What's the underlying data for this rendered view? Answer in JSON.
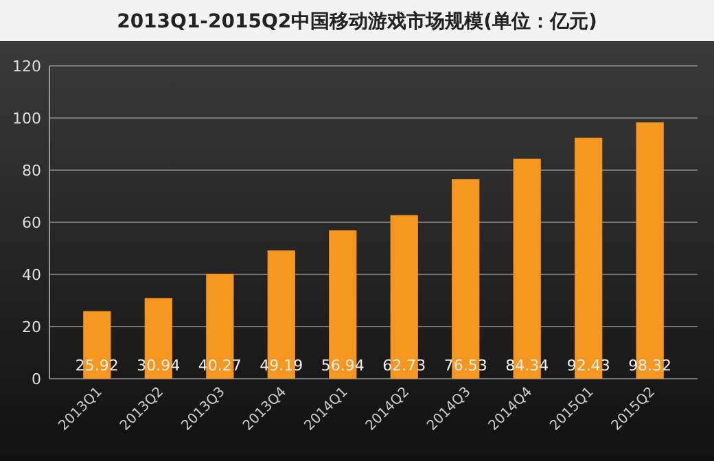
{
  "chart_data": {
    "type": "bar",
    "title": "2013Q1-2015Q2中国移动游戏市场规模(单位：亿元)",
    "categories": [
      "2013Q1",
      "2013Q2",
      "2013Q3",
      "2013Q4",
      "2014Q1",
      "2014Q2",
      "2014Q3",
      "2014Q4",
      "2015Q1",
      "2015Q2"
    ],
    "values": [
      25.92,
      30.94,
      40.27,
      49.19,
      56.94,
      62.73,
      76.53,
      84.34,
      92.43,
      98.32
    ],
    "color": "#f5961e",
    "ylim": [
      0,
      120
    ],
    "yticks": [
      0,
      20,
      40,
      60,
      80,
      100,
      120
    ],
    "grid": "y",
    "data_labels": true
  }
}
